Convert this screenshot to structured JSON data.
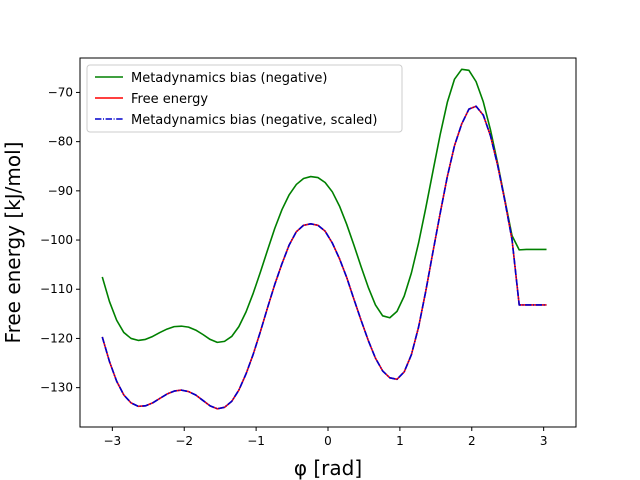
{
  "chart_data": {
    "type": "line",
    "xlabel": "φ  [rad]",
    "ylabel": "Free energy [kJ/mol]",
    "xlim": [
      -3.45,
      3.45
    ],
    "ylim": [
      -138,
      -63
    ],
    "xticks": [
      -3,
      -2,
      -1,
      0,
      1,
      2,
      3
    ],
    "yticks": [
      -130,
      -120,
      -110,
      -100,
      -90,
      -80,
      -70
    ],
    "grid": false,
    "legend_position": "top-left",
    "x": [
      -3.14,
      -3.04,
      -2.94,
      -2.84,
      -2.74,
      -2.64,
      -2.54,
      -2.44,
      -2.34,
      -2.24,
      -2.14,
      -2.04,
      -1.94,
      -1.84,
      -1.74,
      -1.64,
      -1.54,
      -1.44,
      -1.34,
      -1.24,
      -1.14,
      -1.04,
      -0.94,
      -0.84,
      -0.74,
      -0.64,
      -0.54,
      -0.44,
      -0.34,
      -0.24,
      -0.14,
      -0.04,
      0.06,
      0.16,
      0.26,
      0.36,
      0.46,
      0.56,
      0.66,
      0.76,
      0.86,
      0.96,
      1.06,
      1.16,
      1.26,
      1.36,
      1.46,
      1.56,
      1.66,
      1.76,
      1.86,
      1.96,
      2.06,
      2.16,
      2.26,
      2.36,
      2.46,
      2.56,
      2.66,
      2.76,
      2.86,
      2.96,
      3.04
    ],
    "series": [
      {
        "name": "Metadynamics bias (negative)",
        "color": "#008000",
        "dash": "solid",
        "values": [
          -107.5,
          -112.5,
          -116.3,
          -118.8,
          -120.0,
          -120.4,
          -120.2,
          -119.6,
          -118.8,
          -118.1,
          -117.6,
          -117.5,
          -117.7,
          -118.3,
          -119.2,
          -120.2,
          -120.8,
          -120.6,
          -119.6,
          -117.6,
          -114.6,
          -110.8,
          -106.5,
          -102.0,
          -97.6,
          -93.8,
          -90.8,
          -88.7,
          -87.5,
          -87.1,
          -87.3,
          -88.3,
          -90.2,
          -93.1,
          -96.8,
          -101.0,
          -105.4,
          -109.6,
          -113.2,
          -115.4,
          -115.8,
          -114.5,
          -111.4,
          -106.7,
          -100.6,
          -93.5,
          -86.0,
          -78.6,
          -72.0,
          -67.3,
          -65.3,
          -65.5,
          -67.8,
          -71.9,
          -77.6,
          -84.4,
          -91.8,
          -99.1,
          -102.0,
          -101.9,
          -101.9,
          -101.9,
          -101.9
        ]
      },
      {
        "name": "Free energy",
        "color": "#ff0000",
        "dash": "solid",
        "values": [
          -119.7,
          -124.7,
          -128.7,
          -131.5,
          -133.1,
          -133.8,
          -133.7,
          -133.1,
          -132.2,
          -131.3,
          -130.7,
          -130.5,
          -130.8,
          -131.5,
          -132.6,
          -133.7,
          -134.3,
          -134.0,
          -132.8,
          -130.5,
          -127.2,
          -123.2,
          -118.6,
          -113.7,
          -109.0,
          -104.8,
          -101.0,
          -98.3,
          -97.0,
          -96.7,
          -97.0,
          -98.2,
          -100.6,
          -103.8,
          -107.6,
          -112.0,
          -116.3,
          -120.4,
          -124.0,
          -126.6,
          -128.0,
          -128.3,
          -126.8,
          -123.3,
          -117.7,
          -110.4,
          -102.4,
          -94.6,
          -87.1,
          -80.8,
          -76.4,
          -73.4,
          -72.8,
          -74.6,
          -78.8,
          -84.8,
          -92.0,
          -99.9,
          -113.2,
          -113.2,
          -113.2,
          -113.2,
          -113.2
        ]
      },
      {
        "name": "Metadynamics bias (negative, scaled)",
        "color": "#0000cc",
        "dash": "dashdot",
        "values": [
          -119.7,
          -124.7,
          -128.7,
          -131.5,
          -133.1,
          -133.8,
          -133.7,
          -133.1,
          -132.2,
          -131.3,
          -130.7,
          -130.5,
          -130.8,
          -131.5,
          -132.6,
          -133.7,
          -134.3,
          -134.0,
          -132.8,
          -130.5,
          -127.2,
          -123.2,
          -118.6,
          -113.7,
          -109.0,
          -104.8,
          -101.0,
          -98.3,
          -97.0,
          -96.7,
          -97.0,
          -98.2,
          -100.6,
          -103.8,
          -107.6,
          -112.0,
          -116.3,
          -120.4,
          -124.0,
          -126.6,
          -128.0,
          -128.3,
          -126.8,
          -123.3,
          -117.7,
          -110.4,
          -102.4,
          -94.6,
          -87.1,
          -80.8,
          -76.4,
          -73.4,
          -72.8,
          -74.6,
          -78.8,
          -84.8,
          -92.0,
          -99.9,
          -113.2,
          -113.2,
          -113.2,
          -113.2,
          -113.2
        ]
      }
    ]
  }
}
